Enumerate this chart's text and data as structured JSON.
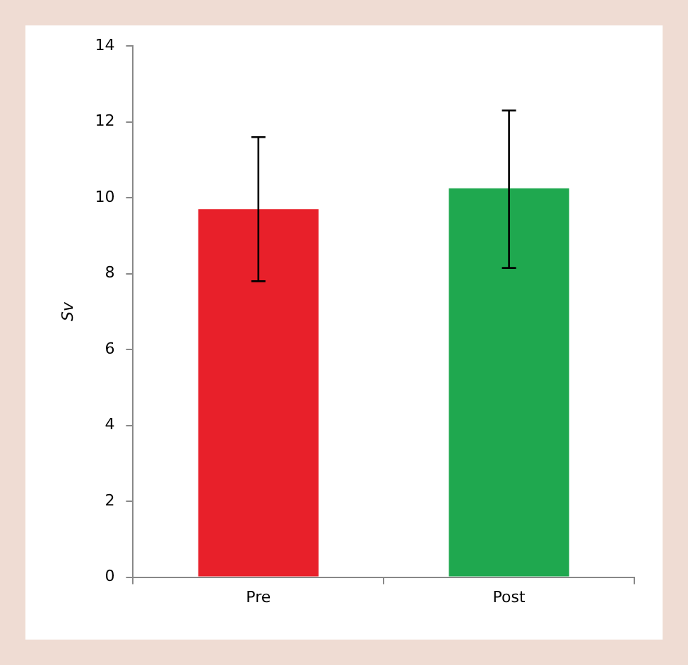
{
  "chart_data": {
    "type": "bar",
    "ylabel": "Sv",
    "categories": [
      "Pre",
      "Post"
    ],
    "values": [
      9.7,
      10.25
    ],
    "colors": [
      "#e8202a",
      "#1fa84f"
    ],
    "errors": [
      [
        7.8,
        11.6
      ],
      [
        8.15,
        12.3
      ]
    ],
    "ylim": [
      0,
      14
    ],
    "yticks": [
      0,
      2,
      4,
      6,
      8,
      10,
      12,
      14
    ],
    "grid": false,
    "legend": false
  }
}
